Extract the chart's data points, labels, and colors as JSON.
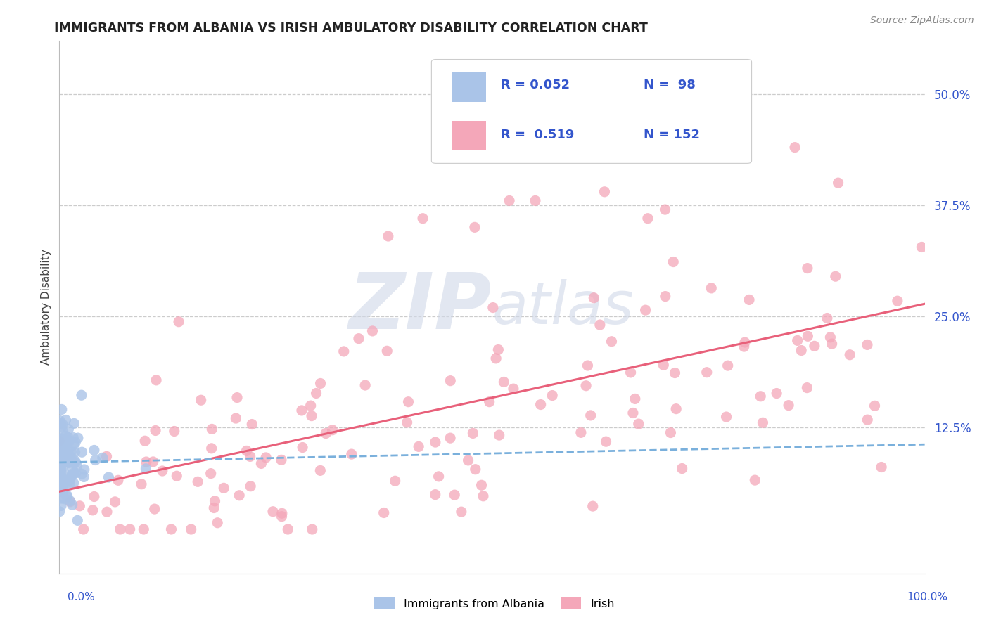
{
  "title": "IMMIGRANTS FROM ALBANIA VS IRISH AMBULATORY DISABILITY CORRELATION CHART",
  "source": "Source: ZipAtlas.com",
  "ylabel": "Ambulatory Disability",
  "legend_blue_r": "R = 0.052",
  "legend_blue_n": "N =  98",
  "legend_pink_r": "R =  0.519",
  "legend_pink_n": "N = 152",
  "ytick_labels": [
    "12.5%",
    "25.0%",
    "37.5%",
    "50.0%"
  ],
  "ytick_values": [
    0.125,
    0.25,
    0.375,
    0.5
  ],
  "xlim": [
    0.0,
    1.0
  ],
  "ylim": [
    -0.04,
    0.56
  ],
  "blue_color": "#aac4e8",
  "pink_color": "#f4a7b9",
  "blue_line_color": "#7ab0dc",
  "pink_line_color": "#e8607a",
  "legend_text_color": "#3355cc",
  "background_color": "#ffffff",
  "grid_color": "#cccccc",
  "watermark_color": "#d0d8e8",
  "title_color": "#222222",
  "source_color": "#888888",
  "ylabel_color": "#444444"
}
